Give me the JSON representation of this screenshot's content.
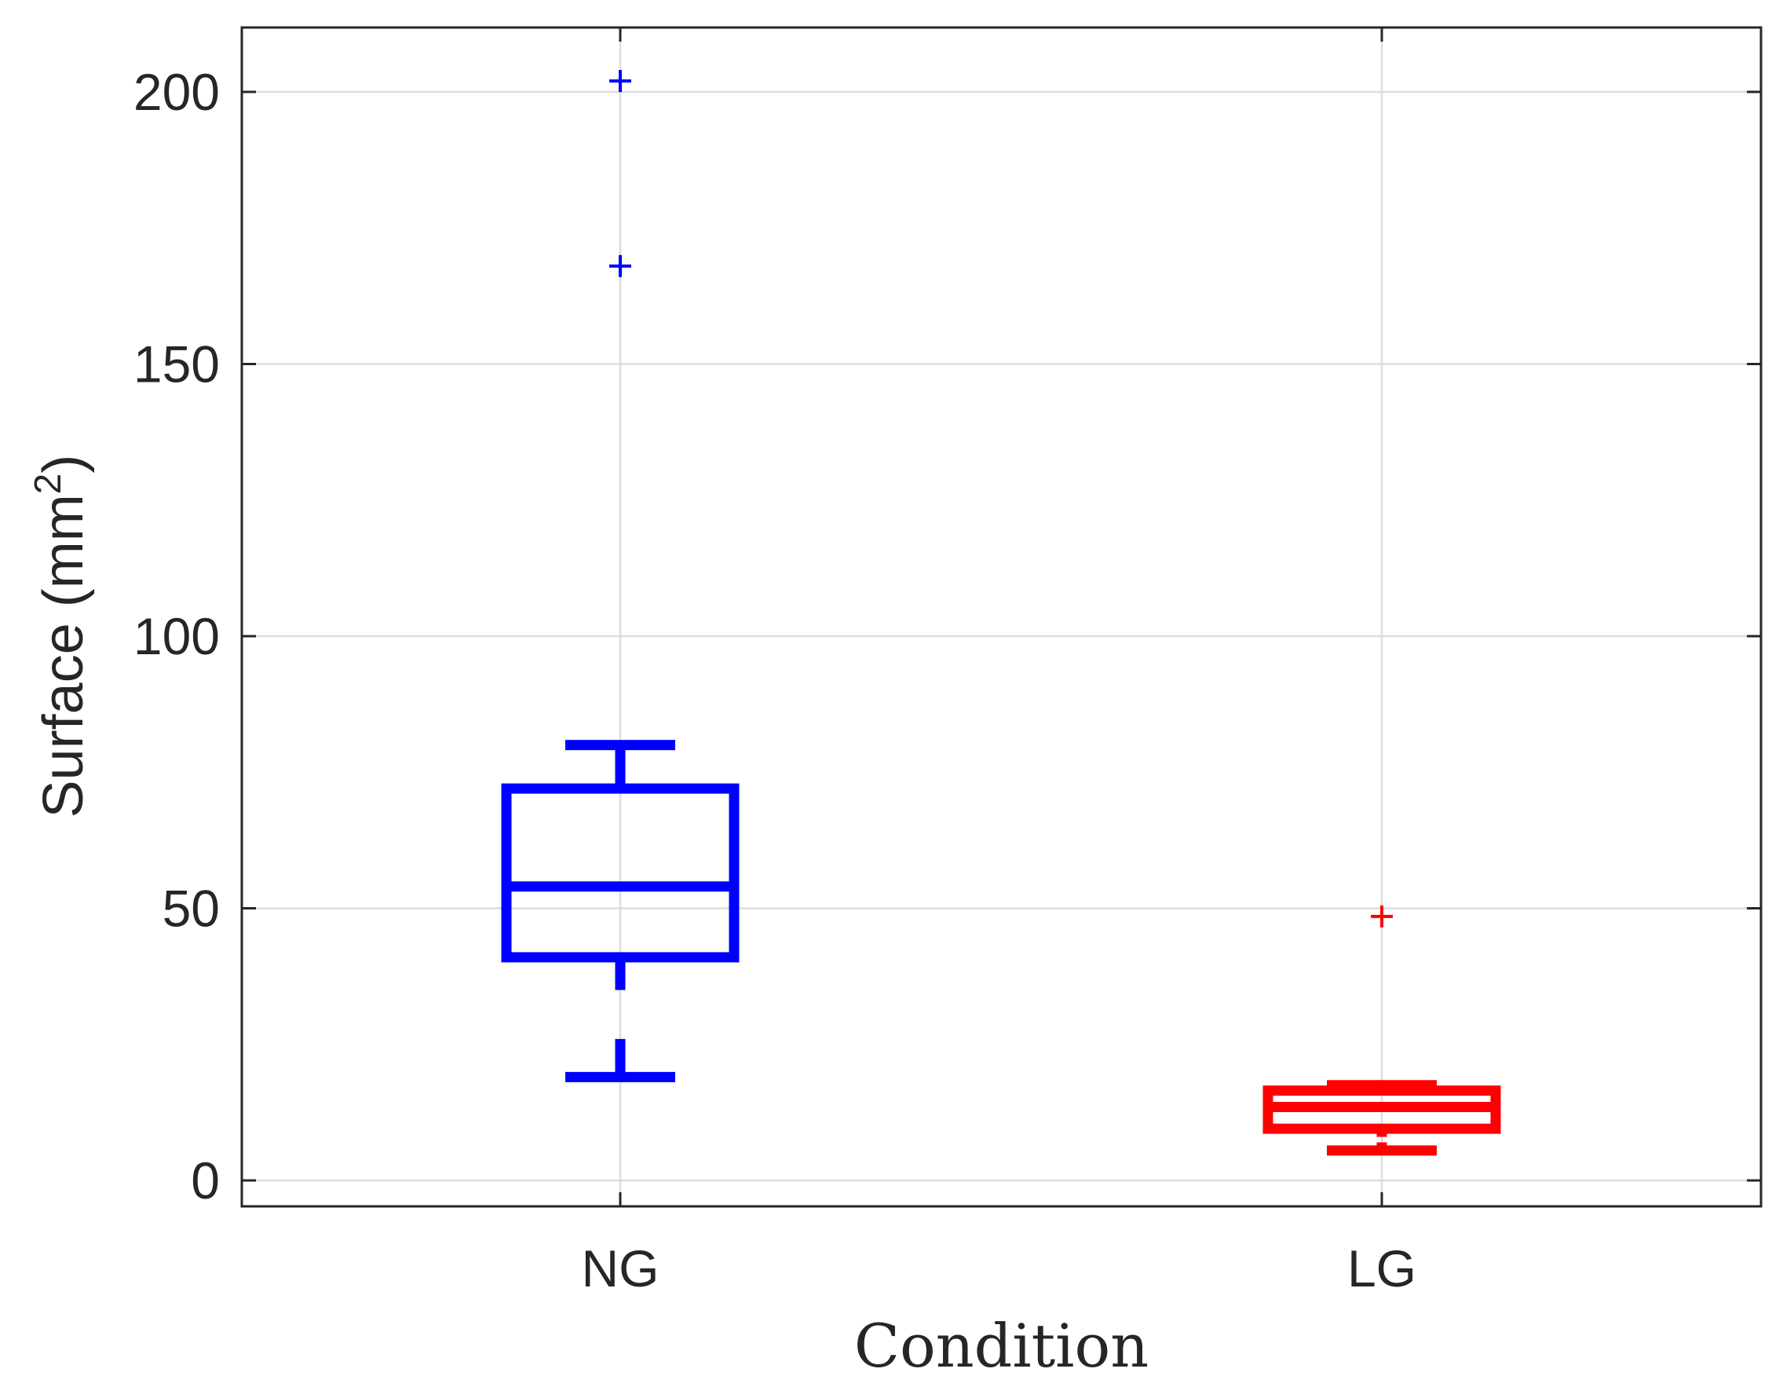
{
  "chart_data": {
    "type": "boxplot",
    "title": "",
    "xlabel": "Condition",
    "ylabel": {
      "text": "Surface (mm",
      "superscript": "2",
      "suffix": ")"
    },
    "ylim": [
      -5,
      212
    ],
    "yticks": [
      0,
      50,
      100,
      150,
      200
    ],
    "ytick_labels": [
      "0",
      "50",
      "100",
      "150",
      "200"
    ],
    "categories": [
      "NG",
      "LG"
    ],
    "grid": true,
    "series": [
      {
        "name": "NG",
        "color": "#0000ff",
        "whisker_low": 19,
        "q1": 41,
        "median": 54,
        "q3": 72,
        "whisker_high": 80,
        "notch_low": 26,
        "notch_high": 35,
        "outliers": [
          168,
          202
        ]
      },
      {
        "name": "LG",
        "color": "#ff0000",
        "whisker_low": 5.5,
        "q1": 9.5,
        "median": 13.5,
        "q3": 16.5,
        "whisker_high": 17.5,
        "notch_low": 7,
        "notch_high": 8,
        "outliers": [
          48.5
        ]
      }
    ],
    "colors": {
      "grid": "#dcdcdc",
      "axis": "#262626",
      "text": "#262626"
    }
  }
}
